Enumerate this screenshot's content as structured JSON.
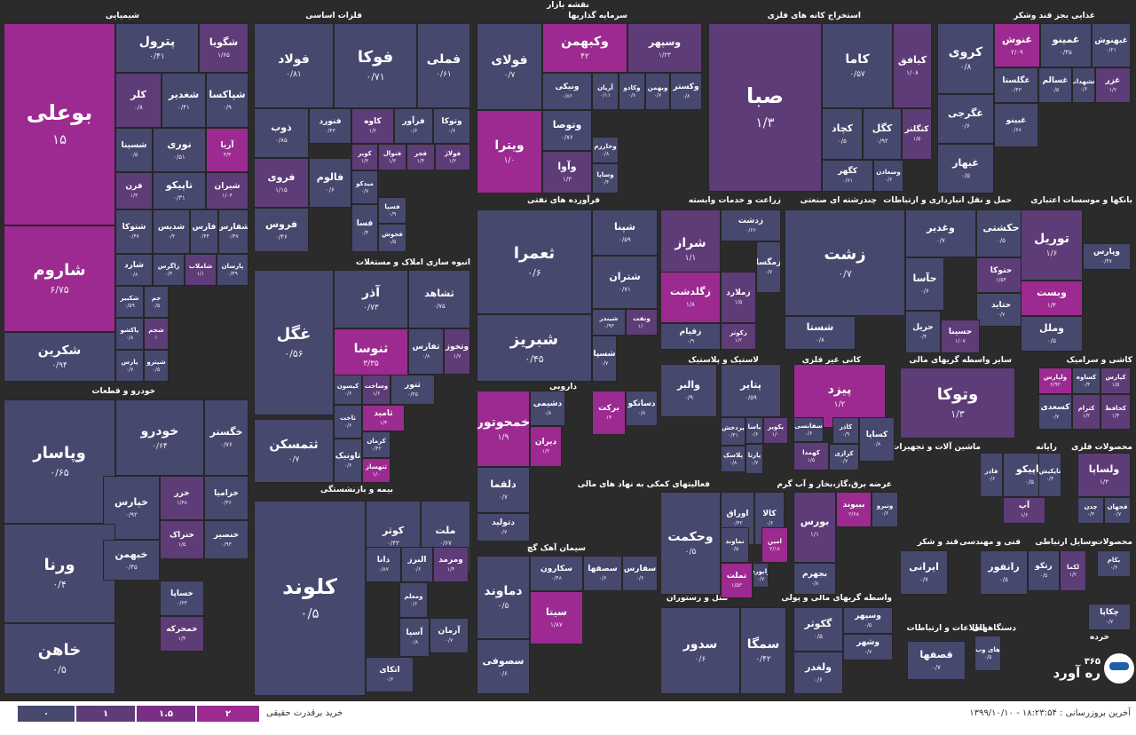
{
  "app_title": "نقشه بازار",
  "colors": {
    "l0": "#47486e",
    "l1": "#5e3c78",
    "l15": "#7a2f85",
    "l2": "#9c2a91"
  },
  "sectors": [
    {
      "name": "شیمیایی"
    },
    {
      "name": "فلزات اساسی"
    },
    {
      "name": "سرمایه گذاریها"
    },
    {
      "name": "استخراج کانه های فلزی"
    },
    {
      "name": "غذایی بجز قند وشکر"
    },
    {
      "name": "انبوه سازی املاک و مستغلات"
    },
    {
      "name": "فرآورده های نفتی"
    },
    {
      "name": "زراعت و خدمات وابسته"
    },
    {
      "name": "چندرشته ای صنعتی"
    },
    {
      "name": "حمل و نقل انبارداری و ارتباطات"
    },
    {
      "name": "بانکها و موسسات اعتباری"
    },
    {
      "name": "خودرو و قطعات"
    },
    {
      "name": "دارویی"
    },
    {
      "name": "لاستیک و پلاستیک"
    },
    {
      "name": "کانی غیر فلزی"
    },
    {
      "name": "سایر واسطه گریهای مالی"
    },
    {
      "name": "کاشی و سرامیک"
    },
    {
      "name": "بیمه و بازنشستگی"
    },
    {
      "name": "فعالیتهای کمکی به نهاد های مالی"
    },
    {
      "name": "عرضه برق،گاز،بخار و آب گرم"
    },
    {
      "name": "ماشین آلات و تجهیزات"
    },
    {
      "name": "رایانه"
    },
    {
      "name": "محصولات فلزی"
    },
    {
      "name": "سیمان آهک گچ"
    },
    {
      "name": "هتل و رستوران"
    },
    {
      "name": "واسطه گریهای مالی و پولی"
    },
    {
      "name": "قند و شکر"
    },
    {
      "name": "فنی و مهندسی"
    },
    {
      "name": "وسایل ارتباطی"
    },
    {
      "name": "محصولات"
    },
    {
      "name": "اطلاعات و ارتباطات"
    },
    {
      "name": "دستگاههای"
    },
    {
      "name": "خرده"
    }
  ],
  "tiles": [
    {
      "name": "بوعلی",
      "value": "۱۵",
      "level": 2
    },
    {
      "name": "شاروم",
      "value": "۶/۷۵",
      "level": 2
    },
    {
      "name": "شکرین",
      "value": "۰/۹۴",
      "level": 0
    },
    {
      "name": "پترول",
      "value": "۰/۴۱",
      "level": 0
    },
    {
      "name": "شگویا",
      "value": "۱/۶۵",
      "level": 1
    },
    {
      "name": "کلر",
      "value": "۰/۸",
      "level": 1
    },
    {
      "name": "شغدیر",
      "value": "۰/۴۱",
      "level": 0
    },
    {
      "name": "شپاکسا",
      "value": "۰/۹",
      "level": 0
    },
    {
      "name": "شسینا",
      "value": "۰/۵",
      "level": 0
    },
    {
      "name": "نوری",
      "value": "۰/۵۱",
      "level": 0
    },
    {
      "name": "آریا",
      "value": "۳/۳",
      "level": 2
    },
    {
      "name": "فرن",
      "value": "۱/۳",
      "level": 1
    },
    {
      "name": "تاپیکو",
      "value": "۰/۳۱",
      "level": 0
    },
    {
      "name": "شیران",
      "value": "۱/۰۴",
      "level": 1
    },
    {
      "name": "شتوکا",
      "value": "۰/۴۷",
      "level": 0
    },
    {
      "name": "شدیس",
      "value": "۰/۴",
      "level": 0
    },
    {
      "name": "فارس",
      "value": "۰/۴۴",
      "level": 0
    },
    {
      "name": "شفارس",
      "value": "۰/۴۷",
      "level": 0
    },
    {
      "name": "شارد",
      "value": "۰/۸",
      "level": 0
    },
    {
      "name": "زاگرس",
      "value": "۰/۳",
      "level": 0
    },
    {
      "name": "شاملاب",
      "value": "۱/۱",
      "level": 1
    },
    {
      "name": "پارسان",
      "value": "۰/۴۹",
      "level": 0
    },
    {
      "name": "شکبیر",
      "value": "۰/۵۹",
      "level": 0
    },
    {
      "name": "جم",
      "value": "۰/۵",
      "level": 0
    },
    {
      "name": "پاکشو",
      "value": "۰/۸",
      "level": 0
    },
    {
      "name": "شجم",
      "value": "۱",
      "level": 1
    },
    {
      "name": "پارس",
      "value": "۰/۷",
      "level": 0
    },
    {
      "name": "شپترو",
      "value": "۰/۵",
      "level": 0
    },
    {
      "name": "فولاد",
      "value": "۰/۸۱",
      "level": 0
    },
    {
      "name": "فوکا",
      "value": "۰/۷۱",
      "level": 0
    },
    {
      "name": "فملی",
      "value": "۰/۶۱",
      "level": 0
    },
    {
      "name": "ذوب",
      "value": "۰/۸۵",
      "level": 0
    },
    {
      "name": "فنورد",
      "value": "۰/۴۳",
      "level": 0
    },
    {
      "name": "کاوه",
      "value": "۱/۲",
      "level": 1
    },
    {
      "name": "فرآور",
      "value": "۰/۶",
      "level": 0
    },
    {
      "name": "وتوکا",
      "value": "۰/۶",
      "level": 0
    },
    {
      "name": "فروی",
      "value": "۱/۱۵",
      "level": 1
    },
    {
      "name": "کویر",
      "value": "۱/۳",
      "level": 1
    },
    {
      "name": "فنوال",
      "value": "۱/۳",
      "level": 1
    },
    {
      "name": "فجر",
      "value": "۱/۴",
      "level": 1
    },
    {
      "name": "فولاژ",
      "value": "۱/۲",
      "level": 1
    },
    {
      "name": "فالوم",
      "value": "۰/۶",
      "level": 0
    },
    {
      "name": "میدکو",
      "value": "۰/۷",
      "level": 0
    },
    {
      "name": "فروس",
      "value": "۰/۴۶",
      "level": 0
    },
    {
      "name": "فسا",
      "value": "۰/۴",
      "level": 0
    },
    {
      "name": "فسپا",
      "value": "۰/۹",
      "level": 0
    },
    {
      "name": "فجوش",
      "value": "۰/۵",
      "level": 0
    },
    {
      "name": "فولای",
      "value": "۰/۷",
      "level": 0
    },
    {
      "name": "وکبهمن",
      "value": "۴۲",
      "level": 2
    },
    {
      "name": "وسپهر",
      "value": "۱/۲۳",
      "level": 1
    },
    {
      "name": "ونیکی",
      "value": "۰/۸۶",
      "level": 0
    },
    {
      "name": "آریان",
      "value": "۰/۱۱",
      "level": 0
    },
    {
      "name": "وکادو",
      "value": "۰/۸",
      "level": 0
    },
    {
      "name": "وبهمن",
      "value": "۰/۷",
      "level": 0
    },
    {
      "name": "وکستر",
      "value": "۰/۸",
      "level": 0
    },
    {
      "name": "ویترا",
      "value": "۱/۰",
      "level": 2
    },
    {
      "name": "وتوصا",
      "value": "۰/۷۶",
      "level": 0
    },
    {
      "name": "وخارزم",
      "value": "۰/۸",
      "level": 0
    },
    {
      "name": "وآوا",
      "value": "۱/۳",
      "level": 1
    },
    {
      "name": "وساپا",
      "value": "۰/۴",
      "level": 0
    },
    {
      "name": "صبا",
      "value": "۱/۳",
      "level": 1
    },
    {
      "name": "کاما",
      "value": "۰/۵۷",
      "level": 0
    },
    {
      "name": "کبافق",
      "value": "۱/۰۸",
      "level": 1
    },
    {
      "name": "کچاد",
      "value": "۰/۵",
      "level": 0
    },
    {
      "name": "کگل",
      "value": "۰/۹۲",
      "level": 0
    },
    {
      "name": "کنگلنر",
      "value": "۱/۵",
      "level": 1
    },
    {
      "name": "کگهر",
      "value": "۰/۷۱",
      "level": 0
    },
    {
      "name": "وسعادن",
      "value": "۰/۶",
      "level": 0
    },
    {
      "name": "کروی",
      "value": "۰/۸",
      "level": 0
    },
    {
      "name": "غنوش",
      "value": "۲/۰۹",
      "level": 2
    },
    {
      "name": "غمینو",
      "value": "۰/۴۵",
      "level": 0
    },
    {
      "name": "غبهنوش",
      "value": "۰/۲۱",
      "level": 0
    },
    {
      "name": "غگلستا",
      "value": "۰/۴۳",
      "level": 0
    },
    {
      "name": "غسالم",
      "value": "۰/۵",
      "level": 0
    },
    {
      "name": "غشهداب",
      "value": "۰/۶",
      "level": 0
    },
    {
      "name": "غزر",
      "value": "۱/۲",
      "level": 1
    },
    {
      "name": "غگرجی",
      "value": "۰/۶",
      "level": 0
    },
    {
      "name": "غبینو",
      "value": "۰/۶۸",
      "level": 0
    },
    {
      "name": "غبهار",
      "value": "۰/۵",
      "level": 0
    },
    {
      "name": "غگل",
      "value": "۰/۵۶",
      "level": 0
    },
    {
      "name": "آذر",
      "value": "۰/۷۳",
      "level": 0
    },
    {
      "name": "ثشاهد",
      "value": "۰/۷۵",
      "level": 0
    },
    {
      "name": "ثنوسا",
      "value": "۳/۳۵",
      "level": 2
    },
    {
      "name": "ثفارس",
      "value": "۰/۸",
      "level": 0
    },
    {
      "name": "وتخوز",
      "value": "۱/۷",
      "level": 1
    },
    {
      "name": "کیسون",
      "value": "۰/۶",
      "level": 0
    },
    {
      "name": "وساخت",
      "value": "۱/۶",
      "level": 1
    },
    {
      "name": "ثتور",
      "value": "۰/۴۵",
      "level": 0
    },
    {
      "name": "ثاخت",
      "value": "۰/۶",
      "level": 0
    },
    {
      "name": "ثامید",
      "value": "۱/۴",
      "level": 2
    },
    {
      "name": "ثتمسکن",
      "value": "۰/۷",
      "level": 0
    },
    {
      "name": "کرمان",
      "value": "۰/۴۲",
      "level": 0
    },
    {
      "name": "ثاونیک",
      "value": "۰/۶",
      "level": 0
    },
    {
      "name": "ثتهساز",
      "value": "۱/۰",
      "level": 2
    },
    {
      "name": "ثعمرا",
      "value": "۰/۶",
      "level": 0
    },
    {
      "name": "شپنا",
      "value": "۰/۵۹",
      "level": 0
    },
    {
      "name": "شتران",
      "value": "۰/۷۱",
      "level": 0
    },
    {
      "name": "شبریز",
      "value": "۰/۴۵",
      "level": 0
    },
    {
      "name": "شبندر",
      "value": "۰/۹۳",
      "level": 0
    },
    {
      "name": "ونفت",
      "value": "۱/۰",
      "level": 1
    },
    {
      "name": "شسپا",
      "value": "۰/۷",
      "level": 0
    },
    {
      "name": "شراز",
      "value": "۱/۱",
      "level": 1
    },
    {
      "name": "زدشت",
      "value": "۰/۶۶",
      "level": 0
    },
    {
      "name": "زگلدشت",
      "value": "۱/۸",
      "level": 2
    },
    {
      "name": "زمگسا",
      "value": "۰/۷",
      "level": 0
    },
    {
      "name": "زملارد",
      "value": "۱/۵",
      "level": 1
    },
    {
      "name": "زقیام",
      "value": "۰/۹",
      "level": 0
    },
    {
      "name": "زکوثر",
      "value": "۱/۲",
      "level": 1
    },
    {
      "name": "زشت",
      "value": "۰/۷",
      "level": 0
    },
    {
      "name": "شستا",
      "value": "۰/۸",
      "level": 0
    },
    {
      "name": "وغدیر",
      "value": "۰/۷",
      "level": 0
    },
    {
      "name": "حکشتی",
      "value": "۰/۵",
      "level": 0
    },
    {
      "name": "حآسا",
      "value": "۰/۶",
      "level": 0
    },
    {
      "name": "حتوکا",
      "value": "۱/۵۴",
      "level": 1
    },
    {
      "name": "حتاید",
      "value": "۰/۷",
      "level": 0
    },
    {
      "name": "حریل",
      "value": "۰/۴",
      "level": 0
    },
    {
      "name": "حسینا",
      "value": "۱/۰۷",
      "level": 1
    },
    {
      "name": "توریل",
      "value": "۱/۶",
      "level": 1
    },
    {
      "name": "وپارس",
      "value": "۰/۴۷",
      "level": 0
    },
    {
      "name": "وبست",
      "value": "۱/۴",
      "level": 2
    },
    {
      "name": "وملل",
      "value": "۰/۵",
      "level": 0
    },
    {
      "name": "وپاسار",
      "value": "۰/۶۵",
      "level": 0
    },
    {
      "name": "خودرو",
      "value": "۰/۶۴",
      "level": 0
    },
    {
      "name": "خگستر",
      "value": "۰/۷۶",
      "level": 0
    },
    {
      "name": "خپارس",
      "value": "۰/۹۲",
      "level": 0
    },
    {
      "name": "خزر",
      "value": "۱/۳۸",
      "level": 1
    },
    {
      "name": "خزامیا",
      "value": "۰/۴۶",
      "level": 0
    },
    {
      "name": "ورنا",
      "value": "۰/۴",
      "level": 0
    },
    {
      "name": "خبهمن",
      "value": "۰/۴۵",
      "level": 0
    },
    {
      "name": "ختراک",
      "value": "۱/۵",
      "level": 1
    },
    {
      "name": "خنصیر",
      "value": "۰/۹۳",
      "level": 0
    },
    {
      "name": "خاهن",
      "value": "۰/۵",
      "level": 0
    },
    {
      "name": "خساپا",
      "value": "۰/۶۴",
      "level": 0
    },
    {
      "name": "خمحرکه",
      "value": "۱/۴",
      "level": 1
    },
    {
      "name": "خمحوتور",
      "value": "۱/۹",
      "level": 2
    },
    {
      "name": "برکت",
      "value": "۱۴",
      "level": 2
    },
    {
      "name": "دسانکو",
      "value": "۰/۸",
      "level": 0
    },
    {
      "name": "دیران",
      "value": "۱/۲",
      "level": 2
    },
    {
      "name": "دشیمی",
      "value": "۰/۸",
      "level": 0
    },
    {
      "name": "دلقما",
      "value": "۰/۷",
      "level": 0
    },
    {
      "name": "دتولید",
      "value": "۰/۷",
      "level": 0
    },
    {
      "name": "والبر",
      "value": "۰/۹",
      "level": 0
    },
    {
      "name": "پتایر",
      "value": "۰/۵۹",
      "level": 0
    },
    {
      "name": "پردخش",
      "value": "۰/۴۱",
      "level": 0
    },
    {
      "name": "پکویر",
      "value": "۱/۰",
      "level": 1
    },
    {
      "name": "پاسا",
      "value": "۰/۶",
      "level": 0
    },
    {
      "name": "پلاسک",
      "value": "۰/۸",
      "level": 0
    },
    {
      "name": "پارتا",
      "value": "۰/۷",
      "level": 0
    },
    {
      "name": "پیزد",
      "value": "۱/۲",
      "level": 2
    },
    {
      "name": "سفانسی",
      "value": "۰/۶",
      "level": 0
    },
    {
      "name": "کاذر",
      "value": "۰/۹",
      "level": 0
    },
    {
      "name": "کهمدا",
      "value": "۱/۵",
      "level": 1
    },
    {
      "name": "کرازی",
      "value": "۰/۷",
      "level": 0
    },
    {
      "name": "کساپا",
      "value": "۰/۸",
      "level": 0
    },
    {
      "name": "وتوکا",
      "value": "۱/۳",
      "level": 1
    },
    {
      "name": "ولپارس",
      "value": "۶/۹۲",
      "level": 2
    },
    {
      "name": "کساوه",
      "value": "۰/۴",
      "level": 0
    },
    {
      "name": "کپارس",
      "value": "۱/۵",
      "level": 1
    },
    {
      "name": "کسعدی",
      "value": "۰/۷",
      "level": 0
    },
    {
      "name": "کترام",
      "value": "۱/۲",
      "level": 1
    },
    {
      "name": "کحافظ",
      "value": "۱/۴",
      "level": 1
    },
    {
      "name": "کلوند",
      "value": "۰/۵",
      "level": 0
    },
    {
      "name": "کوثر",
      "value": "۰/۴۳",
      "level": 0
    },
    {
      "name": "ملت",
      "value": "۰/۶۷",
      "level": 0
    },
    {
      "name": "دانا",
      "value": "۰/۸۷",
      "level": 0
    },
    {
      "name": "البرز",
      "value": "۰/۶",
      "level": 0
    },
    {
      "name": "ومرمد",
      "value": "۱/۴",
      "level": 1
    },
    {
      "name": "ومعلم",
      "value": "۰/۶",
      "level": 0
    },
    {
      "name": "آسیا",
      "value": "۰/۸",
      "level": 0
    },
    {
      "name": "آرمان",
      "value": "۰/۷",
      "level": 0
    },
    {
      "name": "اتکای",
      "value": "۰/۶",
      "level": 0
    },
    {
      "name": "وحکمت",
      "value": "۰/۵",
      "level": 0
    },
    {
      "name": "اوراق",
      "value": "۰/۴۲",
      "level": 0
    },
    {
      "name": "کالا",
      "value": "۰/۶",
      "level": 0
    },
    {
      "name": "نماوند",
      "value": "۰/۵",
      "level": 0
    },
    {
      "name": "امین",
      "value": "۲/۱۸",
      "level": 2
    },
    {
      "name": "تملت",
      "value": "۱/۵۳",
      "level": 2
    },
    {
      "name": "فرابورس",
      "value": "۰/۷",
      "level": 0
    },
    {
      "name": "بورس",
      "value": "۱/۱",
      "level": 1
    },
    {
      "name": "ببیوند",
      "value": "۲/۶۸",
      "level": 2
    },
    {
      "name": "ونیرو",
      "value": "۰/۶",
      "level": 0
    },
    {
      "name": "بجهرم",
      "value": "۰/۸",
      "level": 0
    },
    {
      "name": "دماوند",
      "value": "۰/۵",
      "level": 0
    },
    {
      "name": "سکارون",
      "value": "۰/۴۸",
      "level": 0
    },
    {
      "name": "سصفها",
      "value": "۰/۶",
      "level": 0
    },
    {
      "name": "سفارس",
      "value": "۰/۶",
      "level": 0
    },
    {
      "name": "سصوفی",
      "value": "۰/۶",
      "level": 0
    },
    {
      "name": "سیتا",
      "value": "۱/۸۷",
      "level": 2
    },
    {
      "name": "سدور",
      "value": "۰/۶",
      "level": 0
    },
    {
      "name": "سمگا",
      "value": "۰/۴۲",
      "level": 0
    },
    {
      "name": "گکوثر",
      "value": "۰/۵",
      "level": 0
    },
    {
      "name": "ولغدر",
      "value": "۰/۶",
      "level": 0
    },
    {
      "name": "وسپهر",
      "value": "۰/۵",
      "level": 0
    },
    {
      "name": "وشهر",
      "value": "۰/۷",
      "level": 0
    },
    {
      "name": "ولساپا",
      "value": "۱/۳",
      "level": 1
    },
    {
      "name": "چدن",
      "value": "۰/۴",
      "level": 0
    },
    {
      "name": "فجهان",
      "value": "۰/۷",
      "level": 0
    },
    {
      "name": "فاذر",
      "value": "۰/۶",
      "level": 0
    },
    {
      "name": "تاپیکو",
      "value": "۰/۵",
      "level": 0
    },
    {
      "name": "تاپکیش",
      "value": "۰/۴",
      "level": 0
    },
    {
      "name": "آپ",
      "value": "۱/۶",
      "level": 1
    },
    {
      "name": "رانفور",
      "value": "۰/۵",
      "level": 0
    },
    {
      "name": "رتکو",
      "value": "۰/۵",
      "level": 0
    },
    {
      "name": "لکما",
      "value": "۱/۲",
      "level": 1
    },
    {
      "name": "ایرانی",
      "value": "۰/۷",
      "level": 0
    },
    {
      "name": "قصفها",
      "value": "۰/۷",
      "level": 0
    },
    {
      "name": "های وب",
      "value": "۰/۵",
      "level": 0
    },
    {
      "name": "بکام",
      "value": "۰/۶",
      "level": 0
    },
    {
      "name": "چکاپا",
      "value": "۰/۷",
      "level": 0
    },
    {
      "name": "خصدرا",
      "value": "۰/۶",
      "level": 0
    }
  ],
  "logo": {
    "name": "ره آورد",
    "sub": "۳۶۵"
  },
  "legend": {
    "label": "خرید برقدرت حقیقی",
    "items": [
      {
        "text": "۰",
        "level": 0
      },
      {
        "text": "۱",
        "level": 1
      },
      {
        "text": "۱.۵",
        "level": 15
      },
      {
        "text": "۲",
        "level": 2
      }
    ]
  },
  "update_label": "آخرین بروزرسانی : ۱۸:۲۳:۵۴ - ۱۳۹۹/۱۰/۱۰"
}
